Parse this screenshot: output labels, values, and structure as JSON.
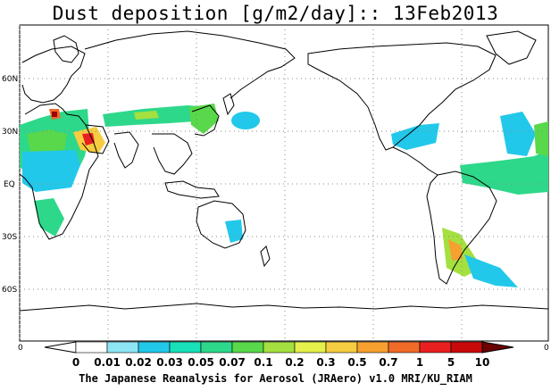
{
  "title": "Dust deposition [g/m2/day]:: 13Feb2013",
  "lat_labels": [
    "60N",
    "30N",
    "EQ",
    "30S",
    "60S"
  ],
  "colorbar": {
    "left_edge_label": "0",
    "right_edge_label": "0",
    "levels": [
      "0",
      "0.01",
      "0.02",
      "0.03",
      "0.05",
      "0.07",
      "0.1",
      "0.2",
      "0.3",
      "0.5",
      "0.7",
      "1",
      "5",
      "10"
    ],
    "colors": [
      "#ffffff",
      "#8ee6f5",
      "#22c8ea",
      "#18e0b8",
      "#2ed88a",
      "#58d84a",
      "#a4e040",
      "#e6f04a",
      "#f6cc40",
      "#f6a030",
      "#f06a28",
      "#e82020",
      "#c80a0a",
      "#9a0000",
      "#6a0000"
    ],
    "land_color": "#ffffff"
  },
  "credit": "The Japanese Reanalysis for Aerosol (JRAero) v1.0 MRI/KU_RIAM",
  "dust_regions": [
    {
      "name": "sahara-north-africa",
      "level": "0.05"
    },
    {
      "name": "arabian-peninsula",
      "level": "1"
    },
    {
      "name": "central-asia-belt",
      "level": "0.05"
    },
    {
      "name": "east-china",
      "level": "0.07"
    },
    {
      "name": "north-pacific-patch",
      "level": "0.03"
    },
    {
      "name": "gulf-mexico",
      "level": "0.03"
    },
    {
      "name": "tropical-atlantic",
      "level": "0.07"
    },
    {
      "name": "southern-africa",
      "level": "0.05"
    },
    {
      "name": "australia",
      "level": "0.03"
    },
    {
      "name": "patagonia",
      "level": "0.3"
    },
    {
      "name": "south-atlantic-plume",
      "level": "0.03"
    }
  ]
}
